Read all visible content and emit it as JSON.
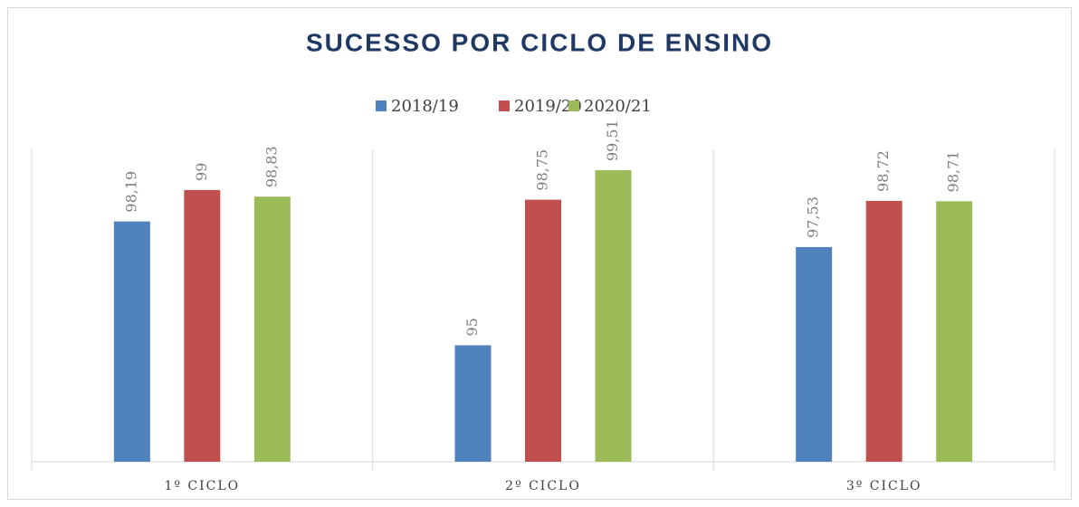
{
  "chart_data": {
    "type": "bar",
    "title": "SUCESSO POR CICLO DE ENSINO",
    "categories": [
      "1º CICLO",
      "2º CICLO",
      "3º CICLO"
    ],
    "series": [
      {
        "name": "2018/19",
        "color": "#4f81bd",
        "values": [
          98.19,
          95,
          97.53
        ],
        "value_labels": [
          "98,19",
          "95",
          "97,53"
        ]
      },
      {
        "name": "2019/20",
        "color": "#c0504d",
        "values": [
          99,
          98.75,
          98.72
        ],
        "value_labels": [
          "99",
          "98,75",
          "98,72"
        ]
      },
      {
        "name": "2020/21",
        "color": "#9bbb59",
        "values": [
          98.83,
          99.51,
          98.71
        ],
        "value_labels": [
          "98,83",
          "99,51",
          "98,71"
        ]
      }
    ],
    "ylim": [
      92,
      100
    ],
    "legend": "top"
  }
}
